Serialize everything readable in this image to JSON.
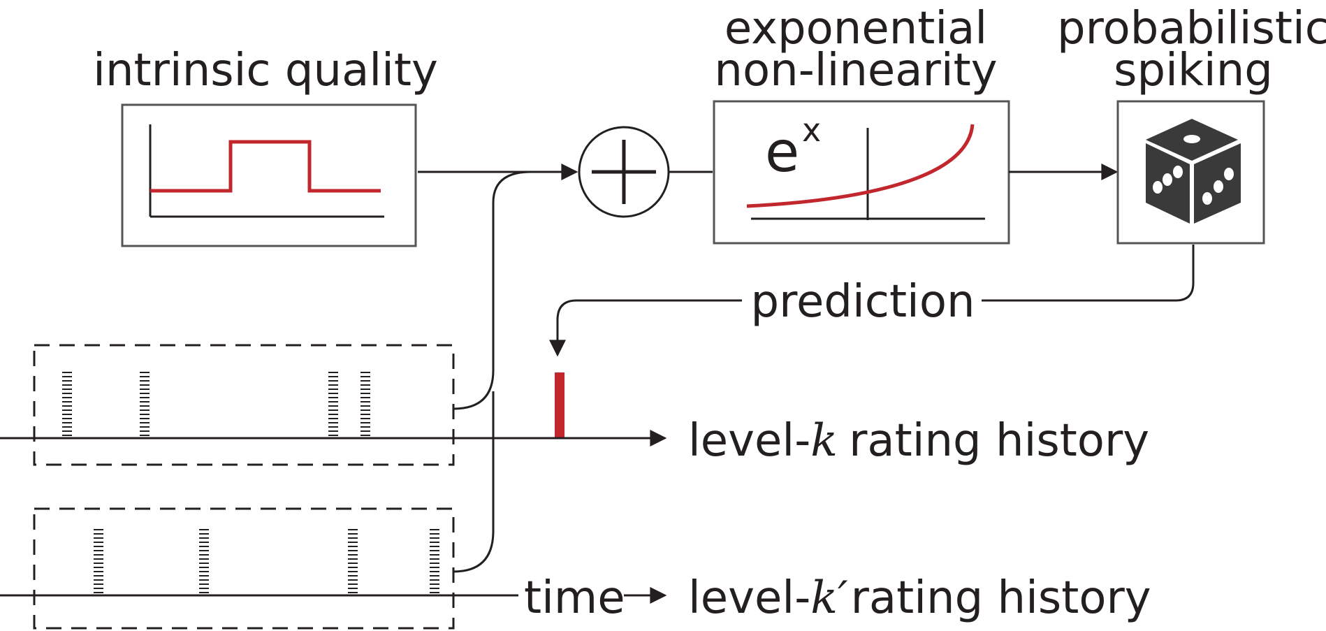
{
  "labels": {
    "intrinsic_quality": "intrinsic quality",
    "exponential_line1": "exponential",
    "exponential_line2": "non-linearity",
    "probabilistic_line1": "probabilistic",
    "probabilistic_line2": "spiking",
    "prediction": "prediction",
    "exp_base": "e",
    "exp_power": "x",
    "time": "time",
    "history_k_prefix": "level-",
    "history_k_var": "k",
    "history_k_suffix": "rating history",
    "history_k2_prefix": "level-",
    "history_k2_var": "k′",
    "history_k2_suffix": "rating history"
  },
  "colors": {
    "line": "#231f20",
    "accent": "#c1272d",
    "box_border": "#555555",
    "dice": "#3a3a3a"
  },
  "icons": [
    "plus-circle-icon",
    "dice-icon"
  ]
}
